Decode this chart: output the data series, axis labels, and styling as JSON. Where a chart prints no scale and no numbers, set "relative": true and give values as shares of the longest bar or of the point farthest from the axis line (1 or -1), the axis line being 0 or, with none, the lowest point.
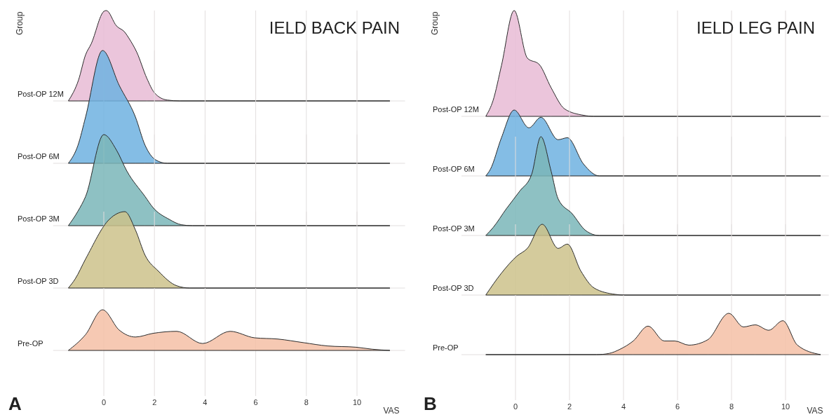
{
  "chart_data": [
    {
      "type": "area",
      "relative": true,
      "title": "IELD BACK PAIN",
      "ylabel": "Group",
      "xlim": [
        -2,
        11.9
      ],
      "xticks": [
        0,
        2,
        4,
        6,
        8,
        10
      ],
      "grid": true,
      "tick_labels": false,
      "series": [
        {
          "name": "Post-OP 12M",
          "color": "#e8bbd5",
          "x": [
            -1.4,
            -1,
            -0.72,
            -0.5,
            0,
            0.1,
            0.5,
            0.83,
            1,
            1.3,
            1.7,
            2,
            2.5,
            3,
            11.3
          ],
          "values": [
            0,
            0.23,
            0.51,
            0.63,
            0.99,
            1,
            0.83,
            0.76,
            0.69,
            0.54,
            0.25,
            0.09,
            0.01,
            0,
            0
          ]
        }
      ]
    },
    {
      "type": "area",
      "relative": true,
      "xlim": [
        -2,
        11.9
      ],
      "xticks": [
        0,
        2,
        4,
        6,
        8,
        10
      ],
      "grid": true,
      "tick_labels": false,
      "series": [
        {
          "name": "Post-OP 6M",
          "color": "#6fb1e0",
          "x": [
            -1.4,
            -1.02,
            -0.72,
            -0.05,
            0.61,
            1.25,
            1.63,
            2.05,
            2.5,
            11.3
          ],
          "values": [
            0,
            0.16,
            0.41,
            1,
            0.69,
            0.41,
            0.16,
            0.03,
            0,
            0
          ]
        }
      ]
    },
    {
      "type": "area",
      "relative": true,
      "xlim": [
        -2,
        11.9
      ],
      "xticks": [
        0,
        2,
        4,
        6,
        8,
        10
      ],
      "grid": true,
      "tick_labels": false,
      "series": [
        {
          "name": "Post-OP 3M",
          "color": "#7ab6b8",
          "x": [
            -1.4,
            -1.02,
            -0.72,
            0,
            0.5,
            0.91,
            1.63,
            1.94,
            2.58,
            3.07,
            3.5,
            11.3
          ],
          "values": [
            0,
            0.16,
            0.32,
            1,
            0.83,
            0.6,
            0.32,
            0.2,
            0.07,
            0.01,
            0,
            0
          ]
        }
      ]
    },
    {
      "type": "area",
      "relative": true,
      "xlim": [
        -2,
        11.9
      ],
      "xticks": [
        0,
        2,
        4,
        6,
        8,
        10
      ],
      "grid": true,
      "tick_labels": false,
      "series": [
        {
          "name": "Post-OP 3D",
          "color": "#cdc28b",
          "x": [
            -1.4,
            -1.13,
            -0.72,
            0.22,
            0.83,
            1.25,
            1.63,
            2.16,
            2.88,
            3.4,
            11.3
          ],
          "values": [
            0,
            0.12,
            0.38,
            0.9,
            1,
            0.76,
            0.43,
            0.22,
            0.03,
            0,
            0
          ]
        }
      ]
    },
    {
      "type": "area",
      "relative": true,
      "xlabel": "VAS",
      "annotations": [
        "A"
      ],
      "xlim": [
        -2,
        11.9
      ],
      "xticks": [
        0,
        2,
        4,
        6,
        8,
        10
      ],
      "grid": true,
      "tick_labels": "x",
      "series": [
        {
          "name": "Pre-OP",
          "color": "#f5c0a6",
          "x": [
            -1.4,
            -0.72,
            -0.05,
            0.61,
            1.25,
            1.94,
            2.88,
            3.9,
            4.99,
            5.96,
            6.87,
            7.9,
            8.84,
            9.95,
            10.6,
            11.3
          ],
          "values": [
            0,
            0.39,
            1,
            0.5,
            0.33,
            0.42,
            0.47,
            0.17,
            0.47,
            0.31,
            0.28,
            0.19,
            0.11,
            0.08,
            0.03,
            0
          ]
        }
      ]
    },
    {
      "type": "area",
      "relative": true,
      "title": "IELD LEG PAIN",
      "ylabel": "Group",
      "xlim": [
        -2,
        11.6
      ],
      "xticks": [
        0,
        2,
        4,
        6,
        8,
        10
      ],
      "grid": true,
      "tick_labels": false,
      "series": [
        {
          "name": "Post-OP 12M",
          "color": "#e8bbd5",
          "x": [
            -1.1,
            -0.83,
            -0.52,
            -0.05,
            0.44,
            0.88,
            1.32,
            1.82,
            2.52,
            2.9,
            11.3
          ],
          "values": [
            0,
            0.15,
            0.48,
            1,
            0.55,
            0.49,
            0.27,
            0.07,
            0.01,
            0,
            0
          ]
        }
      ]
    },
    {
      "type": "area",
      "relative": true,
      "xlim": [
        -2,
        11.6
      ],
      "xticks": [
        0,
        2,
        4,
        6,
        8,
        10
      ],
      "grid": true,
      "tick_labels": false,
      "series": [
        {
          "name": "Post-OP 6M",
          "color": "#6fb1e0",
          "x": [
            -1.1,
            -0.93,
            -0.52,
            -0.05,
            0.5,
            0.94,
            1.58,
            1.92,
            2.52,
            3.1,
            11.3
          ],
          "values": [
            0,
            0.1,
            0.58,
            1,
            0.73,
            0.89,
            0.55,
            0.58,
            0.18,
            0,
            0
          ]
        }
      ]
    },
    {
      "type": "area",
      "relative": true,
      "xlim": [
        -2,
        11.6
      ],
      "xticks": [
        0,
        2,
        4,
        6,
        8,
        10
      ],
      "grid": true,
      "tick_labels": false,
      "series": [
        {
          "name": "Post-OP 3M",
          "color": "#7ab6b8",
          "x": [
            -1.1,
            -0.83,
            -0.34,
            0.16,
            0.6,
            0.94,
            1.32,
            1.58,
            2.1,
            2.6,
            3.1,
            11.3
          ],
          "values": [
            0,
            0.08,
            0.27,
            0.45,
            0.62,
            1,
            0.65,
            0.37,
            0.22,
            0.05,
            0,
            0
          ]
        }
      ]
    },
    {
      "type": "area",
      "relative": true,
      "xlim": [
        -2,
        11.6
      ],
      "xticks": [
        0,
        2,
        4,
        6,
        8,
        10
      ],
      "grid": true,
      "tick_labels": false,
      "series": [
        {
          "name": "Post-OP 3D",
          "color": "#cdc28b",
          "x": [
            -1.1,
            -0.52,
            0.05,
            0.44,
            0.99,
            1.58,
            1.92,
            2.42,
            2.91,
            3.69,
            4,
            11.3
          ],
          "values": [
            0,
            0.31,
            0.55,
            0.66,
            1,
            0.66,
            0.72,
            0.34,
            0.1,
            0.01,
            0,
            0
          ]
        }
      ]
    },
    {
      "type": "area",
      "relative": true,
      "xlabel": "VAS",
      "annotations": [
        "B"
      ],
      "xlim": [
        -2,
        11.6
      ],
      "xticks": [
        0,
        2,
        4,
        6,
        8,
        10
      ],
      "grid": true,
      "tick_labels": "x",
      "series": [
        {
          "name": "Pre-OP",
          "color": "#f5c0a6",
          "x": [
            -1.1,
            3,
            3.47,
            3.87,
            4.36,
            4.91,
            5.51,
            5.9,
            6.42,
            7.12,
            7.9,
            8.44,
            8.88,
            9.38,
            9.9,
            10.44,
            11.3
          ],
          "values": [
            0,
            0,
            0.03,
            0.13,
            0.33,
            0.69,
            0.33,
            0.33,
            0.23,
            0.36,
            1,
            0.67,
            0.72,
            0.59,
            0.82,
            0.23,
            0
          ]
        }
      ]
    }
  ]
}
